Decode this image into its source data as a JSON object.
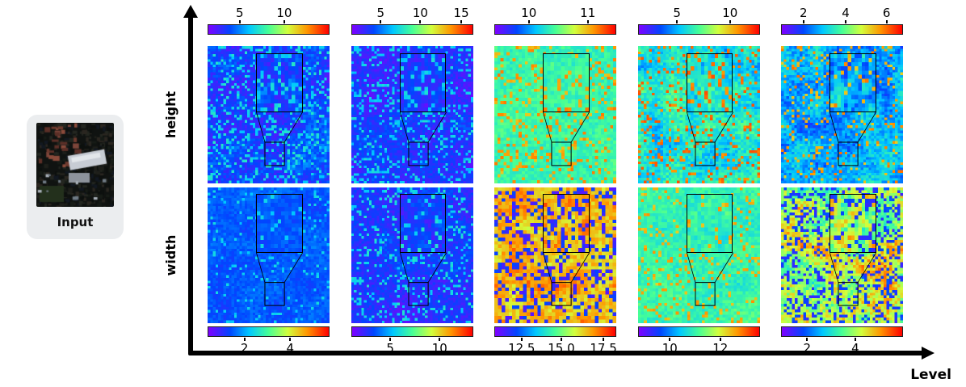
{
  "input": {
    "label": "Input",
    "content": "dark satellite/aerial photo thumbnail"
  },
  "axes": {
    "x_label": "Level",
    "row_labels": [
      "height",
      "width"
    ]
  },
  "chart_data": {
    "type": "heatmap",
    "layout": "2 rows (height, width) x 5 columns (levels 1-5); each panel has its own rainbow colorbar (top row: colorbar above, bottom row: colorbar below) and a magnifier inset box linked to a small source box",
    "colormap": "rainbow (violet-blue-cyan-green-yellow-orange-red)",
    "colormap_stops": [
      [
        0,
        127,
        0,
        255
      ],
      [
        0.18,
        0,
        70,
        255
      ],
      [
        0.34,
        0,
        200,
        255
      ],
      [
        0.5,
        70,
        255,
        150
      ],
      [
        0.66,
        210,
        255,
        60
      ],
      [
        0.82,
        255,
        150,
        0
      ],
      [
        1,
        255,
        0,
        0
      ]
    ],
    "panels": [
      {
        "row": "height",
        "level": 1,
        "colorbar_side": "top",
        "ticks": [
          {
            "label": "5",
            "pos": 26
          },
          {
            "label": "10",
            "pos": 63
          }
        ],
        "look": "blue/violet field with cyan speckles",
        "appearance": {
          "seed": 101,
          "grid": 46,
          "base": 0.17,
          "spread": 0.12,
          "blotch": 0.16,
          "sv": 0.38,
          "sf": 0.2,
          "ss": 0.1
        }
      },
      {
        "row": "height",
        "level": 2,
        "colorbar_side": "top",
        "ticks": [
          {
            "label": "5",
            "pos": 24
          },
          {
            "label": "10",
            "pos": 57
          },
          {
            "label": "15",
            "pos": 91
          }
        ],
        "look": "violet/blue with cyan speckles",
        "appearance": {
          "seed": 102,
          "grid": 48,
          "base": 0.13,
          "spread": 0.1,
          "blotch": 0.12,
          "sv": 0.36,
          "sf": 0.18,
          "ss": 0.1
        }
      },
      {
        "row": "height",
        "level": 3,
        "colorbar_side": "top",
        "ticks": [
          {
            "label": "10",
            "pos": 28
          },
          {
            "label": "11",
            "pos": 77
          }
        ],
        "look": "pale green/cyan with orange speckles",
        "appearance": {
          "seed": 103,
          "grid": 40,
          "base": 0.47,
          "spread": 0.1,
          "blotch": 0.06,
          "sv": 0.8,
          "sf": 0.16,
          "ss": 0.12
        }
      },
      {
        "row": "height",
        "level": 4,
        "colorbar_side": "top",
        "ticks": [
          {
            "label": "5",
            "pos": 32
          },
          {
            "label": "10",
            "pos": 76
          }
        ],
        "look": "cyan/blue with red patches",
        "appearance": {
          "seed": 104,
          "grid": 44,
          "base": 0.4,
          "spread": 0.16,
          "blotch": 0.22,
          "sv": 0.86,
          "sf": 0.14,
          "ss": 0.1
        }
      },
      {
        "row": "height",
        "level": 5,
        "colorbar_side": "top",
        "ticks": [
          {
            "label": "2",
            "pos": 18
          },
          {
            "label": "4",
            "pos": 53
          },
          {
            "label": "6",
            "pos": 87
          }
        ],
        "look": "blue/cyan with scattered red-orange structures",
        "appearance": {
          "seed": 105,
          "grid": 46,
          "base": 0.3,
          "spread": 0.16,
          "blotch": 0.24,
          "sv": 0.8,
          "sf": 0.1,
          "ss": 0.14
        }
      },
      {
        "row": "width",
        "level": 1,
        "colorbar_side": "bottom",
        "ticks": [
          {
            "label": "2",
            "pos": 30
          },
          {
            "label": "4",
            "pos": 68
          }
        ],
        "look": "nearly uniform blue",
        "appearance": {
          "seed": 201,
          "grid": 46,
          "base": 0.2,
          "spread": 0.07,
          "blotch": 0.08,
          "sv": 0.36,
          "sf": 0.07,
          "ss": 0.06
        }
      },
      {
        "row": "width",
        "level": 2,
        "colorbar_side": "bottom",
        "ticks": [
          {
            "label": "5",
            "pos": 32
          },
          {
            "label": "10",
            "pos": 73
          }
        ],
        "look": "violet/blue with cyan speckles",
        "appearance": {
          "seed": 202,
          "grid": 48,
          "base": 0.14,
          "spread": 0.1,
          "blotch": 0.12,
          "sv": 0.38,
          "sf": 0.16,
          "ss": 0.1
        }
      },
      {
        "row": "width",
        "level": 3,
        "colorbar_side": "bottom",
        "ticks": [
          {
            "label": "12.5",
            "pos": 22
          },
          {
            "label": "15.0",
            "pos": 55
          },
          {
            "label": "17.5",
            "pos": 90
          }
        ],
        "look": "coarse red/orange blocks with blue-violet patches",
        "appearance": {
          "seed": 203,
          "grid": 34,
          "base": 0.78,
          "spread": 0.14,
          "blotch": 0.18,
          "sv": 0.12,
          "sf": 0.28,
          "ss": 0.14
        }
      },
      {
        "row": "width",
        "level": 4,
        "colorbar_side": "bottom",
        "ticks": [
          {
            "label": "10",
            "pos": 26
          },
          {
            "label": "12",
            "pos": 68
          }
        ],
        "look": "cyan/green with orange speckles",
        "appearance": {
          "seed": 204,
          "grid": 42,
          "base": 0.46,
          "spread": 0.1,
          "blotch": 0.1,
          "sv": 0.78,
          "sf": 0.13,
          "ss": 0.1
        }
      },
      {
        "row": "width",
        "level": 5,
        "colorbar_side": "bottom",
        "ticks": [
          {
            "label": "2",
            "pos": 21
          },
          {
            "label": "4",
            "pos": 61
          }
        ],
        "look": "high-contrast mix of red, blue and cyan",
        "appearance": {
          "seed": 205,
          "grid": 44,
          "base": 0.62,
          "spread": 0.22,
          "blotch": 0.4,
          "sv": 0.15,
          "sf": 0.26,
          "ss": 0.12
        }
      }
    ],
    "inset": {
      "big_box": {
        "x": 40,
        "y": 5,
        "w": 38,
        "h": 43
      },
      "small_box": {
        "x": 47,
        "y": 70,
        "w": 16,
        "h": 17
      }
    }
  }
}
